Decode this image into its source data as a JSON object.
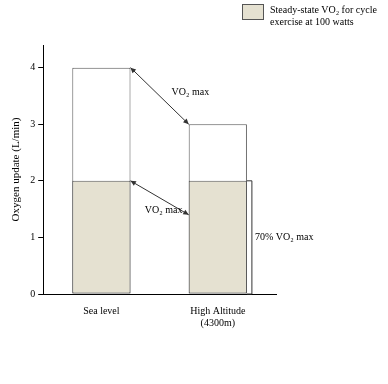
{
  "chart_data": {
    "type": "bar",
    "ylabel": "Oxygen update (L/min)",
    "categories": [
      "Sea level",
      "High Altitude (4300m)"
    ],
    "series": [
      {
        "name": "Steady-state VO₂ for cycle exercise at 100 watts",
        "color": "#e5e1d1",
        "values": [
          2,
          2
        ]
      },
      {
        "color": "#ffffff",
        "values": [
          4,
          3
        ]
      }
    ],
    "ylim": [
      0,
      4.4
    ],
    "yticks": [
      0,
      1,
      2,
      3,
      4
    ],
    "grid": false,
    "legend": "top-right",
    "annotations": {
      "arrows": [
        {
          "text": "VO₂ max",
          "from": 4,
          "to": 3
        },
        {
          "text": "VO₂ max",
          "from": 2,
          "to": 1.4
        }
      ],
      "brackets": [
        {
          "text": "70% VO₂ max",
          "from": 0,
          "to": 2
        }
      ]
    }
  }
}
